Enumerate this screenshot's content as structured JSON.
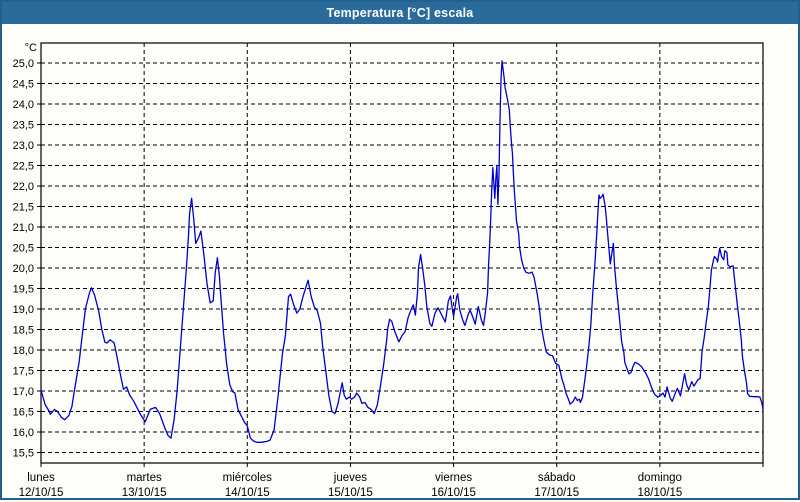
{
  "window": {
    "title": "Temperatura [°C] escala"
  },
  "colors": {
    "titlebar_bg": "#2a6b9c",
    "window_border": "#21618f",
    "background": "#fdfef9",
    "line": "#0000cc",
    "grid": "#000000",
    "text": "#000000",
    "title_text": "#ffffff"
  },
  "chart_data": {
    "type": "line",
    "title": "Temperatura [°C] escala",
    "y_unit": "°C",
    "ylabel": "Temperatura",
    "ylim": [
      15.5,
      25.0
    ],
    "y_tick_step": 0.5,
    "y_tick_labels": [
      "25,0",
      "24,5",
      "24,0",
      "23,5",
      "23,0",
      "22,5",
      "22,0",
      "21,5",
      "21,0",
      "20,5",
      "20,0",
      "19,5",
      "19,0",
      "18,5",
      "18,0",
      "17,5",
      "17,0",
      "16,5",
      "16,0",
      "15,5"
    ],
    "grid": "dashed",
    "legend": "none",
    "x_days": [
      {
        "name": "lunes",
        "date": "12/10/15"
      },
      {
        "name": "martes",
        "date": "13/10/15"
      },
      {
        "name": "miércoles",
        "date": "14/10/15"
      },
      {
        "name": "jueves",
        "date": "15/10/15"
      },
      {
        "name": "viernes",
        "date": "16/10/15"
      },
      {
        "name": "sábado",
        "date": "17/10/15"
      },
      {
        "name": "domingo",
        "date": "18/10/15"
      }
    ],
    "series": [
      {
        "name": "Temperatura [°C]",
        "color": "#0000cc",
        "x_unit": "days_from_monday",
        "points": [
          [
            0,
            17.02
          ],
          [
            0.04,
            16.67
          ],
          [
            0.08,
            16.5
          ],
          [
            0.09,
            16.43
          ],
          [
            0.13,
            16.55
          ],
          [
            0.16,
            16.5
          ],
          [
            0.2,
            16.35
          ],
          [
            0.23,
            16.3
          ],
          [
            0.27,
            16.4
          ],
          [
            0.3,
            16.62
          ],
          [
            0.33,
            17.1
          ],
          [
            0.37,
            17.72
          ],
          [
            0.4,
            18.37
          ],
          [
            0.43,
            19
          ],
          [
            0.47,
            19.4
          ],
          [
            0.49,
            19.52
          ],
          [
            0.52,
            19.34
          ],
          [
            0.56,
            18.94
          ],
          [
            0.59,
            18.49
          ],
          [
            0.62,
            18.19
          ],
          [
            0.64,
            18.17
          ],
          [
            0.67,
            18.25
          ],
          [
            0.71,
            18.17
          ],
          [
            0.74,
            17.8
          ],
          [
            0.77,
            17.4
          ],
          [
            0.8,
            17.04
          ],
          [
            0.83,
            17.1
          ],
          [
            0.86,
            16.9
          ],
          [
            0.9,
            16.75
          ],
          [
            0.93,
            16.6
          ],
          [
            0.96,
            16.45
          ],
          [
            1.01,
            16.25
          ],
          [
            1.06,
            16.55
          ],
          [
            1.11,
            16.6
          ],
          [
            1.15,
            16.45
          ],
          [
            1.2,
            16.1
          ],
          [
            1.23,
            15.92
          ],
          [
            1.26,
            15.85
          ],
          [
            1.29,
            16.3
          ],
          [
            1.32,
            17
          ],
          [
            1.35,
            18
          ],
          [
            1.38,
            19
          ],
          [
            1.41,
            20
          ],
          [
            1.43,
            20.8
          ],
          [
            1.44,
            21.3
          ],
          [
            1.46,
            21.7
          ],
          [
            1.48,
            21.2
          ],
          [
            1.5,
            20.6
          ],
          [
            1.53,
            20.75
          ],
          [
            1.55,
            20.9
          ],
          [
            1.58,
            20.3
          ],
          [
            1.61,
            19.6
          ],
          [
            1.64,
            19.15
          ],
          [
            1.67,
            19.2
          ],
          [
            1.69,
            19.9
          ],
          [
            1.71,
            20.25
          ],
          [
            1.73,
            19.8
          ],
          [
            1.74,
            19.4
          ],
          [
            1.77,
            18.4
          ],
          [
            1.8,
            17.65
          ],
          [
            1.83,
            17.15
          ],
          [
            1.86,
            16.98
          ],
          [
            1.88,
            16.95
          ],
          [
            1.91,
            16.55
          ],
          [
            1.94,
            16.4
          ],
          [
            1.97,
            16.25
          ],
          [
            2,
            16.15
          ],
          [
            2.03,
            15.85
          ],
          [
            2.06,
            15.78
          ],
          [
            2.09,
            15.75
          ],
          [
            2.14,
            15.75
          ],
          [
            2.19,
            15.77
          ],
          [
            2.22,
            15.8
          ],
          [
            2.26,
            16.05
          ],
          [
            2.3,
            16.9
          ],
          [
            2.34,
            17.9
          ],
          [
            2.37,
            18.35
          ],
          [
            2.4,
            19.3
          ],
          [
            2.42,
            19.36
          ],
          [
            2.45,
            19.1
          ],
          [
            2.48,
            18.9
          ],
          [
            2.51,
            19
          ],
          [
            2.54,
            19.3
          ],
          [
            2.57,
            19.55
          ],
          [
            2.59,
            19.7
          ],
          [
            2.62,
            19.3
          ],
          [
            2.65,
            19.05
          ],
          [
            2.68,
            18.95
          ],
          [
            2.71,
            18.65
          ],
          [
            2.73,
            18.1
          ],
          [
            2.76,
            17.5
          ],
          [
            2.79,
            16.9
          ],
          [
            2.82,
            16.5
          ],
          [
            2.85,
            16.45
          ],
          [
            2.88,
            16.7
          ],
          [
            2.9,
            16.95
          ],
          [
            2.92,
            17.2
          ],
          [
            2.94,
            16.9
          ],
          [
            2.96,
            16.8
          ],
          [
            2.99,
            16.85
          ],
          [
            3.01,
            16.8
          ],
          [
            3.04,
            16.85
          ],
          [
            3.06,
            16.95
          ],
          [
            3.09,
            16.85
          ],
          [
            3.11,
            16.7
          ],
          [
            3.14,
            16.72
          ],
          [
            3.17,
            16.6
          ],
          [
            3.2,
            16.55
          ],
          [
            3.23,
            16.45
          ],
          [
            3.26,
            16.65
          ],
          [
            3.29,
            17.1
          ],
          [
            3.32,
            17.6
          ],
          [
            3.35,
            18.2
          ],
          [
            3.36,
            18.5
          ],
          [
            3.38,
            18.75
          ],
          [
            3.4,
            18.7
          ],
          [
            3.43,
            18.45
          ],
          [
            3.47,
            18.2
          ],
          [
            3.5,
            18.35
          ],
          [
            3.53,
            18.45
          ],
          [
            3.56,
            18.8
          ],
          [
            3.59,
            19
          ],
          [
            3.61,
            19.1
          ],
          [
            3.63,
            18.85
          ],
          [
            3.65,
            19.4
          ],
          [
            3.66,
            20
          ],
          [
            3.68,
            20.33
          ],
          [
            3.7,
            20
          ],
          [
            3.72,
            19.6
          ],
          [
            3.74,
            19.06
          ],
          [
            3.77,
            18.65
          ],
          [
            3.79,
            18.58
          ],
          [
            3.82,
            18.9
          ],
          [
            3.85,
            19.03
          ],
          [
            3.89,
            18.83
          ],
          [
            3.92,
            18.68
          ],
          [
            3.95,
            19.2
          ],
          [
            3.97,
            19.32
          ],
          [
            3.99,
            18.97
          ],
          [
            4,
            18.82
          ],
          [
            4.03,
            19.3
          ],
          [
            4.04,
            19.37
          ],
          [
            4.06,
            18.97
          ],
          [
            4.09,
            18.72
          ],
          [
            4.11,
            18.6
          ],
          [
            4.14,
            18.85
          ],
          [
            4.16,
            18.97
          ],
          [
            4.19,
            18.78
          ],
          [
            4.21,
            18.63
          ],
          [
            4.24,
            19.06
          ],
          [
            4.27,
            18.73
          ],
          [
            4.29,
            18.6
          ],
          [
            4.31,
            18.95
          ],
          [
            4.33,
            19.4
          ],
          [
            4.34,
            20.1
          ],
          [
            4.35,
            20.6
          ],
          [
            4.36,
            21.2
          ],
          [
            4.37,
            21.9
          ],
          [
            4.38,
            22.45
          ],
          [
            4.4,
            21.7
          ],
          [
            4.41,
            22.2
          ],
          [
            4.42,
            22.5
          ],
          [
            4.43,
            21.55
          ],
          [
            4.44,
            22.3
          ],
          [
            4.45,
            23.6
          ],
          [
            4.46,
            24.6
          ],
          [
            4.47,
            25.05
          ],
          [
            4.49,
            24.65
          ],
          [
            4.5,
            24.4
          ],
          [
            4.52,
            24.15
          ],
          [
            4.54,
            23.85
          ],
          [
            4.55,
            23.45
          ],
          [
            4.56,
            23.1
          ],
          [
            4.57,
            22.8
          ],
          [
            4.58,
            22.3
          ],
          [
            4.59,
            21.85
          ],
          [
            4.6,
            21.5
          ],
          [
            4.61,
            21.15
          ],
          [
            4.63,
            20.85
          ],
          [
            4.64,
            20.5
          ],
          [
            4.66,
            20.2
          ],
          [
            4.68,
            20
          ],
          [
            4.7,
            19.9
          ],
          [
            4.73,
            19.87
          ],
          [
            4.76,
            19.9
          ],
          [
            4.78,
            19.78
          ],
          [
            4.81,
            19.38
          ],
          [
            4.83,
            19.05
          ],
          [
            4.85,
            18.6
          ],
          [
            4.87,
            18.3
          ],
          [
            4.89,
            18.05
          ],
          [
            4.9,
            17.95
          ],
          [
            4.93,
            17.88
          ],
          [
            4.96,
            17.86
          ],
          [
            4.99,
            17.67
          ],
          [
            5.02,
            17.63
          ],
          [
            5.05,
            17.3
          ],
          [
            5.07,
            17.15
          ],
          [
            5.09,
            16.95
          ],
          [
            5.11,
            16.82
          ],
          [
            5.13,
            16.68
          ],
          [
            5.16,
            16.75
          ],
          [
            5.18,
            16.85
          ],
          [
            5.2,
            16.77
          ],
          [
            5.22,
            16.8
          ],
          [
            5.23,
            16.72
          ],
          [
            5.25,
            16.85
          ],
          [
            5.27,
            17.23
          ],
          [
            5.29,
            17.6
          ],
          [
            5.31,
            18.05
          ],
          [
            5.33,
            18.6
          ],
          [
            5.34,
            19
          ],
          [
            5.35,
            19.4
          ],
          [
            5.37,
            20.1
          ],
          [
            5.39,
            20.9
          ],
          [
            5.4,
            21.4
          ],
          [
            5.41,
            21.78
          ],
          [
            5.42,
            21.7
          ],
          [
            5.44,
            21.75
          ],
          [
            5.45,
            21.8
          ],
          [
            5.47,
            21.5
          ],
          [
            5.48,
            21.25
          ],
          [
            5.5,
            20.65
          ],
          [
            5.52,
            20.1
          ],
          [
            5.54,
            20.45
          ],
          [
            5.55,
            20.6
          ],
          [
            5.56,
            20.05
          ],
          [
            5.58,
            19.5
          ],
          [
            5.6,
            19
          ],
          [
            5.62,
            18.45
          ],
          [
            5.63,
            18.2
          ],
          [
            5.65,
            17.95
          ],
          [
            5.66,
            17.7
          ],
          [
            5.68,
            17.55
          ],
          [
            5.7,
            17.42
          ],
          [
            5.72,
            17.45
          ],
          [
            5.74,
            17.6
          ],
          [
            5.76,
            17.7
          ],
          [
            5.79,
            17.66
          ],
          [
            5.82,
            17.6
          ],
          [
            5.86,
            17.45
          ],
          [
            5.89,
            17.3
          ],
          [
            5.92,
            17.08
          ],
          [
            5.95,
            16.92
          ],
          [
            5.98,
            16.85
          ],
          [
            6.01,
            16.9
          ],
          [
            6.03,
            16.95
          ],
          [
            6.05,
            16.85
          ],
          [
            6.07,
            17.1
          ],
          [
            6.1,
            16.83
          ],
          [
            6.12,
            16.75
          ],
          [
            6.15,
            16.95
          ],
          [
            6.17,
            17.06
          ],
          [
            6.19,
            16.94
          ],
          [
            6.2,
            16.88
          ],
          [
            6.22,
            17.15
          ],
          [
            6.24,
            17.42
          ],
          [
            6.26,
            17.15
          ],
          [
            6.28,
            17.03
          ],
          [
            6.31,
            17.23
          ],
          [
            6.33,
            17.12
          ],
          [
            6.35,
            17.2
          ],
          [
            6.37,
            17.28
          ],
          [
            6.39,
            17.3
          ],
          [
            6.41,
            17.97
          ],
          [
            6.43,
            18.3
          ],
          [
            6.45,
            18.7
          ],
          [
            6.47,
            19.05
          ],
          [
            6.49,
            19.65
          ],
          [
            6.5,
            19.95
          ],
          [
            6.52,
            20.2
          ],
          [
            6.53,
            20.28
          ],
          [
            6.55,
            20.22
          ],
          [
            6.56,
            20.15
          ],
          [
            6.58,
            20.48
          ],
          [
            6.6,
            20.27
          ],
          [
            6.62,
            20.2
          ],
          [
            6.63,
            20.42
          ],
          [
            6.65,
            20.38
          ],
          [
            6.66,
            20.07
          ],
          [
            6.68,
            20.03
          ],
          [
            6.71,
            20.05
          ],
          [
            6.73,
            19.58
          ],
          [
            6.75,
            19.13
          ],
          [
            6.77,
            18.7
          ],
          [
            6.79,
            18.25
          ],
          [
            6.8,
            17.85
          ],
          [
            6.82,
            17.5
          ],
          [
            6.84,
            17.2
          ],
          [
            6.85,
            16.94
          ],
          [
            6.87,
            16.87
          ],
          [
            6.91,
            16.86
          ],
          [
            6.95,
            16.86
          ],
          [
            6.97,
            16.85
          ],
          [
            6.99,
            16.7
          ],
          [
            7,
            16.55
          ]
        ]
      }
    ]
  }
}
